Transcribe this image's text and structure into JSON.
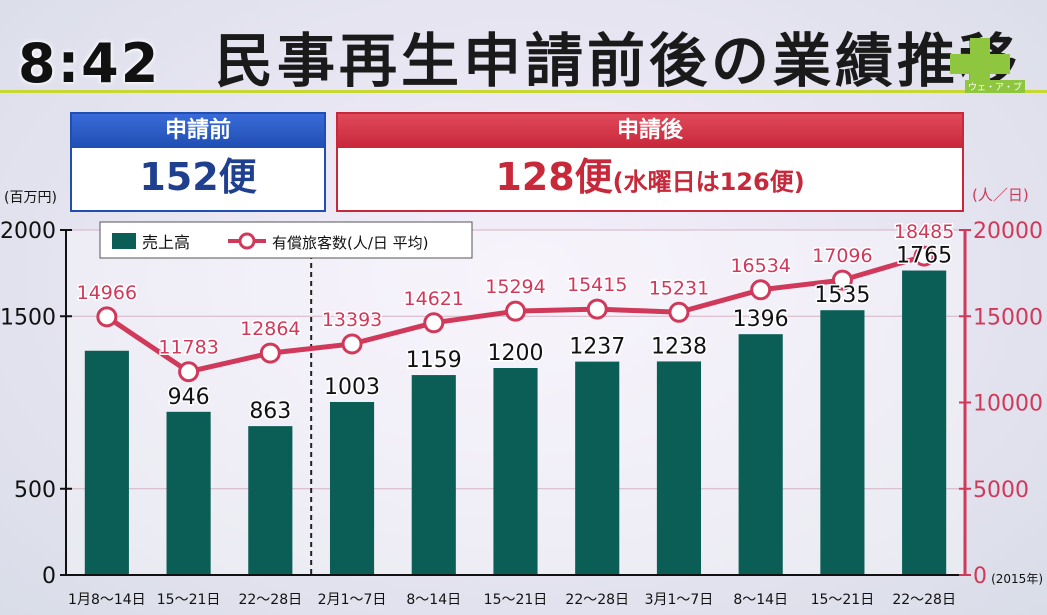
{
  "clock": "8:42",
  "title": "民事再生申請前後の業績推移",
  "summary": {
    "before": {
      "label": "申請前",
      "value": "152便"
    },
    "after": {
      "label": "申請後",
      "value": "128便",
      "note": "(水曜日は126便)"
    }
  },
  "chart_data": {
    "type": "bar+line",
    "categories": [
      "1月8～14日",
      "15～21日",
      "22～28日",
      "2月1～7日",
      "8～14日",
      "15～21日",
      "22～28日",
      "3月1～7日",
      "8～14日",
      "15～21日",
      "22～28日"
    ],
    "year_note": "(2015年)",
    "left_axis": {
      "unit": "(百万円)",
      "min": 0,
      "max": 2000,
      "ticks": [
        0,
        500,
        1500,
        2000
      ]
    },
    "right_axis": {
      "unit": "(人／日)",
      "min": 0,
      "max": 20000,
      "ticks": [
        0,
        5000,
        10000,
        15000,
        20000
      ]
    },
    "series": [
      {
        "name": "売上高",
        "type": "bar",
        "axis": "left",
        "values": [
          1300,
          946,
          863,
          1003,
          1159,
          1200,
          1237,
          1238,
          1396,
          1535,
          1765
        ],
        "labels": [
          "",
          "946",
          "863",
          "1003",
          "1159",
          "1200",
          "1237",
          "1238",
          "1396",
          "1535",
          "1765"
        ]
      },
      {
        "name": "有償旅客数(人/日 平均)",
        "type": "line",
        "axis": "right",
        "values": [
          14966,
          11783,
          12864,
          13393,
          14621,
          15294,
          15415,
          15231,
          16534,
          17096,
          18485
        ]
      }
    ],
    "divider_after_index": 2,
    "colors": {
      "bar": "#0b5e55",
      "line": "#d0395a",
      "grid": "#d4b3c6"
    }
  }
}
